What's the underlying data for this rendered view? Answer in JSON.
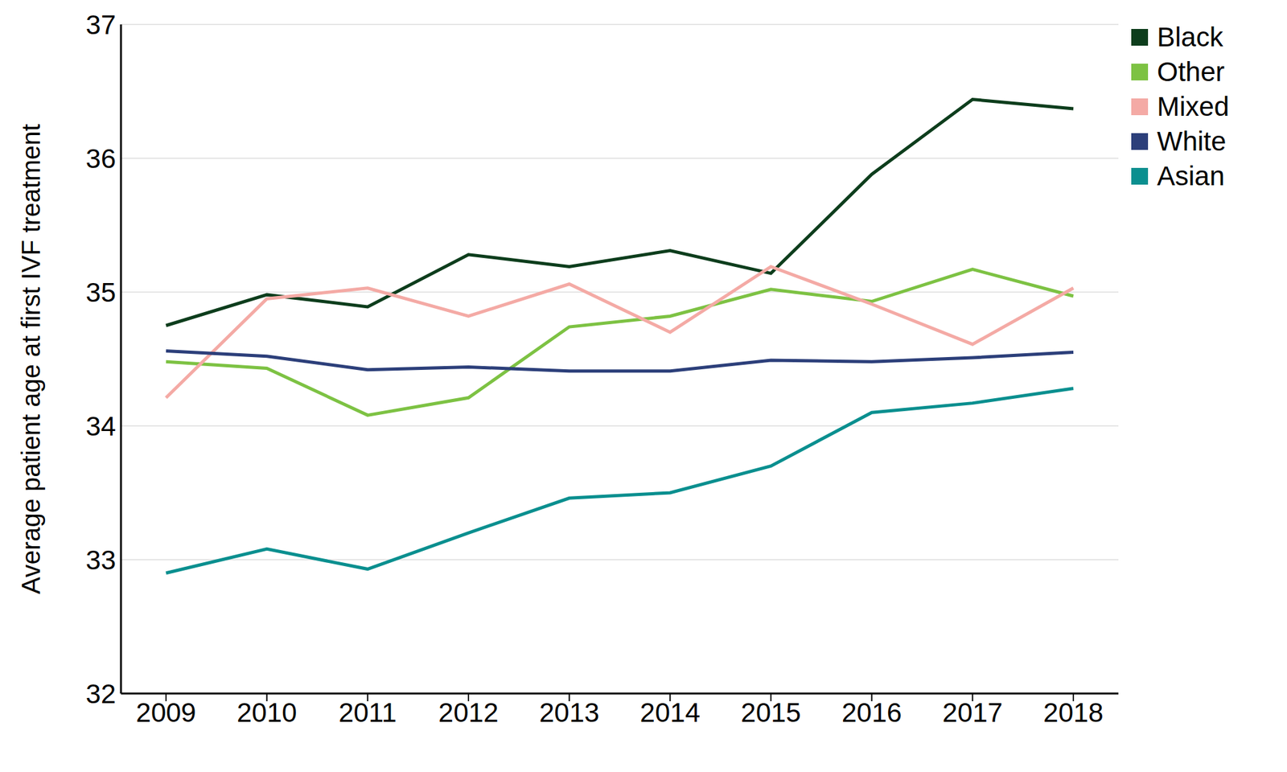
{
  "chart_data": {
    "type": "line",
    "y_label": "Average patient age at first IVF treatment",
    "categories": [
      "2009",
      "2010",
      "2011",
      "2012",
      "2013",
      "2014",
      "2015",
      "2016",
      "2017",
      "2018"
    ],
    "series": [
      {
        "name": "Black",
        "color": "#0d3d1c",
        "values": [
          34.75,
          34.98,
          34.89,
          35.28,
          35.19,
          35.31,
          35.14,
          35.88,
          36.44,
          36.37
        ]
      },
      {
        "name": "Other",
        "color": "#7dc243",
        "values": [
          34.48,
          34.43,
          34.08,
          34.21,
          34.74,
          34.82,
          35.02,
          34.93,
          35.17,
          34.97
        ]
      },
      {
        "name": "Mixed",
        "color": "#f4aaa5",
        "values": [
          34.21,
          34.95,
          35.03,
          34.82,
          35.06,
          34.7,
          35.19,
          34.91,
          34.61,
          35.03
        ]
      },
      {
        "name": "White",
        "color": "#2c3f7a",
        "values": [
          34.56,
          34.52,
          34.42,
          34.44,
          34.41,
          34.41,
          34.49,
          34.48,
          34.51,
          34.55
        ]
      },
      {
        "name": "Asian",
        "color": "#0a8f8f",
        "values": [
          32.9,
          33.08,
          32.93,
          33.2,
          33.46,
          33.5,
          33.7,
          34.1,
          34.17,
          34.28
        ]
      }
    ],
    "ylim": [
      32,
      37
    ],
    "yticks": [
      32,
      33,
      34,
      35,
      36,
      37
    ],
    "grid": true,
    "legend": "right"
  }
}
